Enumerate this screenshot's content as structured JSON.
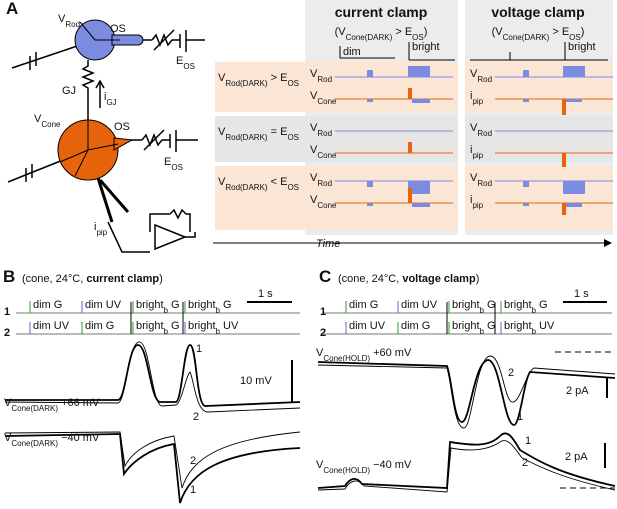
{
  "panel_a": {
    "label": "A",
    "diagram": {
      "v_rod": [
        {
          "t": "V"
        },
        {
          "sub": "Rod"
        }
      ],
      "rod_os": "OS",
      "rod_e_os": [
        {
          "t": "E"
        },
        {
          "sub": "OS"
        }
      ],
      "gj": "GJ",
      "i_gj": [
        {
          "t": "i"
        },
        {
          "sub": "GJ"
        }
      ],
      "v_cone": [
        {
          "t": "V"
        },
        {
          "sub": "Cone"
        }
      ],
      "cone_os": "OS",
      "cone_e_os": [
        {
          "t": "E"
        },
        {
          "sub": "OS"
        }
      ],
      "i_pip": [
        {
          "t": "i"
        },
        {
          "sub": "pip"
        }
      ]
    },
    "table": {
      "columns": [
        {
          "title": "current clamp",
          "condition": [
            {
              "t": "(V"
            },
            {
              "sub": "Cone(DARK)"
            },
            {
              "t": " > E"
            },
            {
              "sub": "OS"
            },
            {
              "t": ")"
            }
          ],
          "dim": "dim",
          "bright": "bright"
        },
        {
          "title": "voltage clamp",
          "condition": [
            {
              "t": "(V"
            },
            {
              "sub": "Cone(DARK)"
            },
            {
              "t": " > E"
            },
            {
              "sub": "OS"
            },
            {
              "t": ")"
            }
          ],
          "bright": "bright"
        }
      ],
      "rows": [
        {
          "label": [
            {
              "t": "V"
            },
            {
              "sub": "Rod(DARK)"
            },
            {
              "t": " > E"
            },
            {
              "sub": "OS"
            }
          ],
          "current_clamp": [
            [
              {
                "t": "V"
              },
              {
                "sub": "Rod"
              }
            ],
            [
              {
                "t": "V"
              },
              {
                "sub": "Cone"
              }
            ]
          ],
          "voltage_clamp": [
            [
              {
                "t": "V"
              },
              {
                "sub": "Rod"
              }
            ],
            [
              {
                "t": "i"
              },
              {
                "sub": "pip"
              }
            ]
          ]
        },
        {
          "label": [
            {
              "t": "V"
            },
            {
              "sub": "Rod(DARK)"
            },
            {
              "t": " = E"
            },
            {
              "sub": "OS"
            }
          ],
          "current_clamp": [
            [
              {
                "t": "V"
              },
              {
                "sub": "Rod"
              }
            ],
            [
              {
                "t": "V"
              },
              {
                "sub": "Cone"
              }
            ]
          ],
          "voltage_clamp": [
            [
              {
                "t": "V"
              },
              {
                "sub": "Rod"
              }
            ],
            [
              {
                "t": "i"
              },
              {
                "sub": "pip"
              }
            ]
          ]
        },
        {
          "label": [
            {
              "t": "V"
            },
            {
              "sub": "Rod(DARK)"
            },
            {
              "t": " < E"
            },
            {
              "sub": "OS"
            }
          ],
          "current_clamp": [
            [
              {
                "t": "V"
              },
              {
                "sub": "Rod"
              }
            ],
            [
              {
                "t": "V"
              },
              {
                "sub": "Cone"
              }
            ]
          ],
          "voltage_clamp": [
            [
              {
                "t": "V"
              },
              {
                "sub": "Rod"
              }
            ],
            [
              {
                "t": "i"
              },
              {
                "sub": "pip"
              }
            ]
          ]
        }
      ]
    },
    "time_axis": "Time"
  },
  "panel_b": {
    "label": "B",
    "title": [
      {
        "t": "(cone, 24°C, "
      },
      {
        "b": "current clamp"
      },
      {
        "t": ")"
      }
    ],
    "stimulus_rows": [
      {
        "label": "1",
        "stimuli": [
          {
            "text": [
              {
                "t": "dim G"
              }
            ],
            "color": "#2e9a2e"
          },
          {
            "text": [
              {
                "t": "dim UV"
              }
            ],
            "color": "#8a4fc9"
          },
          {
            "text": [
              {
                "t": "bright"
              },
              {
                "sub": "b"
              },
              {
                "t": " G"
              }
            ],
            "color": "#2e9a2e"
          },
          {
            "text": [
              {
                "t": "bright"
              },
              {
                "sub": "b"
              },
              {
                "t": " G"
              }
            ],
            "color": "#2e9a2e"
          }
        ]
      },
      {
        "label": "2",
        "stimuli": [
          {
            "text": [
              {
                "t": "dim UV"
              }
            ],
            "color": "#8a4fc9"
          },
          {
            "text": [
              {
                "t": "dim G"
              }
            ],
            "color": "#2e9a2e"
          },
          {
            "text": [
              {
                "t": "bright"
              },
              {
                "sub": "b"
              },
              {
                "t": " G"
              }
            ],
            "color": "#2e9a2e"
          },
          {
            "text": [
              {
                "t": "bright"
              },
              {
                "sub": "b"
              },
              {
                "t": " UV"
              }
            ],
            "color": "#8a4fc9"
          }
        ]
      }
    ],
    "time_scale": "1 s",
    "amplitude_scale": "10 mV",
    "upper_label": [
      {
        "t": "V"
      },
      {
        "sub": "Cone(DARK)"
      },
      {
        "t": " +66 mV"
      }
    ],
    "lower_label": [
      {
        "t": "V"
      },
      {
        "sub": "Cone(DARK)"
      },
      {
        "t": " −40 mV"
      }
    ],
    "trace_numbers": [
      "1",
      "2",
      "2",
      "1"
    ]
  },
  "panel_c": {
    "label": "C",
    "title": [
      {
        "t": "(cone, 24°C, "
      },
      {
        "b": "voltage clamp"
      },
      {
        "t": ")"
      }
    ],
    "stimulus_rows": [
      {
        "label": "1",
        "stimuli": [
          {
            "text": [
              {
                "t": "dim G"
              }
            ],
            "color": "#2e9a2e"
          },
          {
            "text": [
              {
                "t": "dim UV"
              }
            ],
            "color": "#8a4fc9"
          },
          {
            "text": [
              {
                "t": "bright"
              },
              {
                "sub": "b"
              },
              {
                "t": " G"
              }
            ],
            "color": "#2e9a2e"
          },
          {
            "text": [
              {
                "t": "bright"
              },
              {
                "sub": "b"
              },
              {
                "t": " G"
              }
            ],
            "color": "#2e9a2e"
          }
        ]
      },
      {
        "label": "2",
        "stimuli": [
          {
            "text": [
              {
                "t": "dim UV"
              }
            ],
            "color": "#8a4fc9"
          },
          {
            "text": [
              {
                "t": "dim G"
              }
            ],
            "color": "#2e9a2e"
          },
          {
            "text": [
              {
                "t": "bright"
              },
              {
                "sub": "b"
              },
              {
                "t": " G"
              }
            ],
            "color": "#2e9a2e"
          },
          {
            "text": [
              {
                "t": "bright"
              },
              {
                "sub": "b"
              },
              {
                "t": " UV"
              }
            ],
            "color": "#8a4fc9"
          }
        ]
      }
    ],
    "time_scale": "1 s",
    "upper_scale": "2 pA",
    "lower_scale": "2 pA",
    "upper_label": [
      {
        "t": "V"
      },
      {
        "sub": "Cone(HOLD)"
      },
      {
        "t": " +60 mV"
      }
    ],
    "lower_label": [
      {
        "t": "V"
      },
      {
        "sub": "Cone(HOLD)"
      },
      {
        "t": " −40 mV"
      }
    ],
    "trace_numbers": [
      "2",
      "1",
      "1",
      "2"
    ]
  }
}
